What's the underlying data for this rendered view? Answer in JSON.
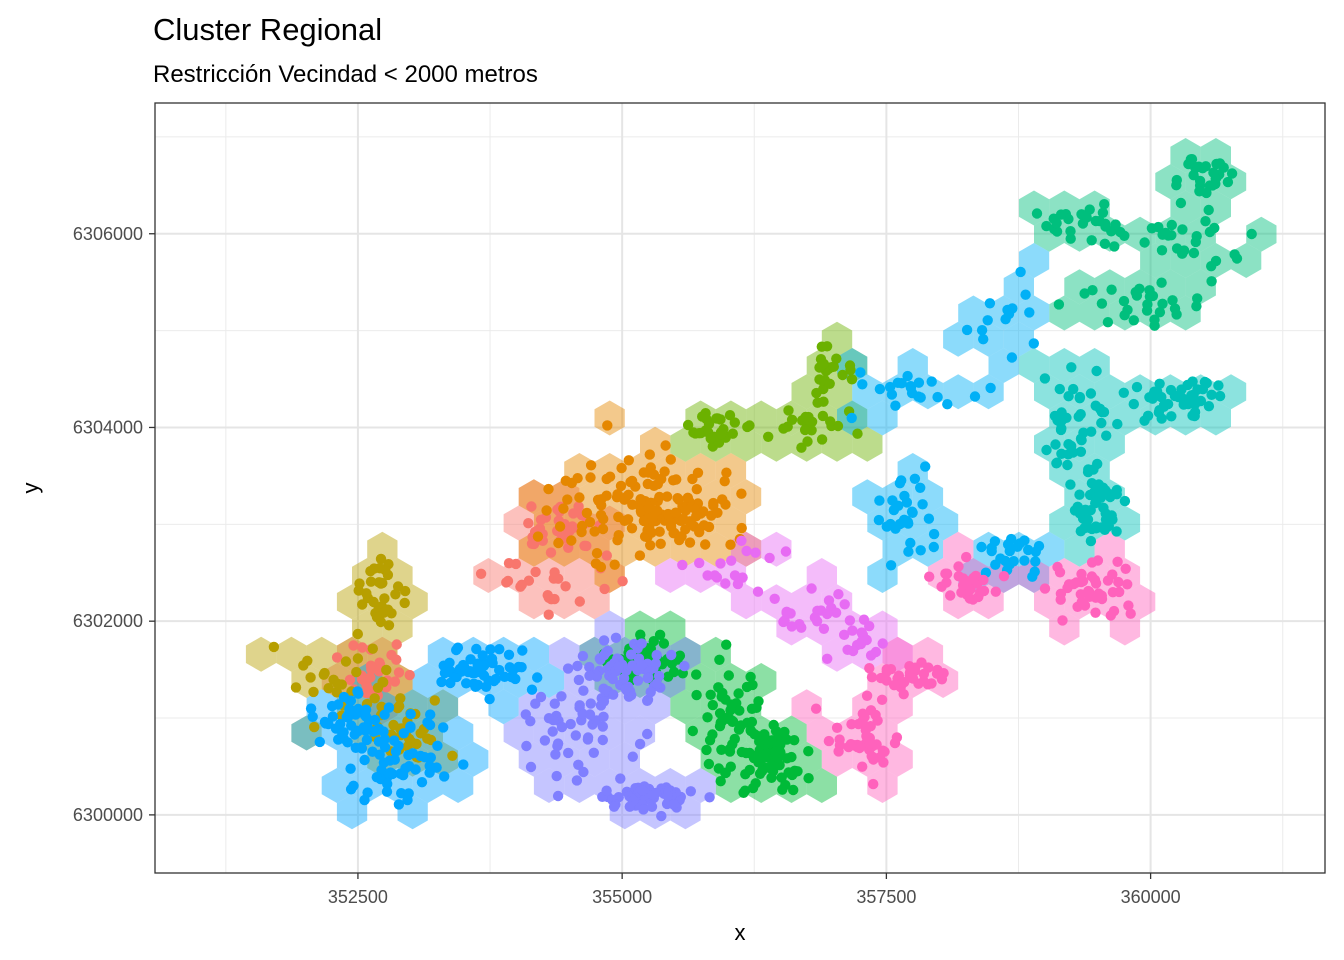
{
  "chart_data": {
    "type": "scatter",
    "title": "Cluster Regional",
    "subtitle": "Restricción Vecindad < 2000 metros",
    "xlabel": "x",
    "ylabel": "y",
    "xlim": [
      350580,
      361650
    ],
    "ylim": [
      6299400,
      6307350
    ],
    "xticks": [
      352500,
      355000,
      357500,
      360000
    ],
    "yticks": [
      6300000,
      6302000,
      6304000,
      6306000
    ],
    "xtick_labels": [
      "352500",
      "355000",
      "357500",
      "360000"
    ],
    "ytick_labels": [
      "6300000",
      "6302000",
      "6304000",
      "6306000"
    ],
    "grid": true,
    "legend": "none",
    "layers": [
      "hexbin (hexagon cells, semi-transparent)",
      "points"
    ],
    "series": [
      {
        "color": "#F8766D",
        "centers": [
          [
            354200,
            6302450
          ],
          [
            352700,
            6301500
          ],
          [
            354400,
            6303000
          ]
        ],
        "spreads": [
          [
            700,
            350
          ],
          [
            300,
            300
          ],
          [
            300,
            250
          ]
        ],
        "n": 90
      },
      {
        "color": "#E58700",
        "centers": [
          [
            355000,
            6303200
          ],
          [
            355600,
            6303100
          ]
        ],
        "spreads": [
          [
            550,
            500
          ],
          [
            450,
            400
          ]
        ],
        "n": 150
      },
      {
        "color": "#B79F00",
        "centers": [
          [
            352200,
            6301400
          ],
          [
            352700,
            6302300
          ],
          [
            353000,
            6300900
          ]
        ],
        "spreads": [
          [
            450,
            400
          ],
          [
            200,
            350
          ],
          [
            300,
            300
          ]
        ],
        "n": 90
      },
      {
        "color": "#6BB100",
        "centers": [
          [
            356800,
            6304000
          ],
          [
            357000,
            6304600
          ],
          [
            355900,
            6304000
          ]
        ],
        "spreads": [
          [
            350,
            250
          ],
          [
            200,
            250
          ],
          [
            250,
            200
          ]
        ],
        "n": 75
      },
      {
        "color": "#00BA38",
        "centers": [
          [
            356000,
            6301000
          ],
          [
            356400,
            6300600
          ],
          [
            355200,
            6301600
          ]
        ],
        "spreads": [
          [
            350,
            600
          ],
          [
            300,
            350
          ],
          [
            300,
            200
          ]
        ],
        "n": 190
      },
      {
        "color": "#00BF7D",
        "centers": [
          [
            360300,
            6306000
          ],
          [
            360500,
            6306600
          ],
          [
            359300,
            6306100
          ],
          [
            359900,
            6305300
          ]
        ],
        "spreads": [
          [
            500,
            350
          ],
          [
            300,
            150
          ],
          [
            400,
            200
          ],
          [
            500,
            200
          ]
        ],
        "n": 110
      },
      {
        "color": "#00C0B8",
        "centers": [
          [
            359300,
            6304000
          ],
          [
            359500,
            6303200
          ],
          [
            360300,
            6304300
          ]
        ],
        "spreads": [
          [
            300,
            500
          ],
          [
            200,
            400
          ],
          [
            400,
            200
          ]
        ],
        "n": 140
      },
      {
        "color": "#00B0F6",
        "centers": [
          [
            357700,
            6304400
          ],
          [
            358600,
            6305100
          ],
          [
            357700,
            6303100
          ],
          [
            358700,
            6302700
          ]
        ],
        "spreads": [
          [
            600,
            250
          ],
          [
            400,
            400
          ],
          [
            300,
            450
          ],
          [
            300,
            200
          ]
        ],
        "n": 90
      },
      {
        "color": "#00A5FF",
        "centers": [
          [
            352900,
            6300500
          ],
          [
            352500,
            6301000
          ],
          [
            353700,
            6301500
          ]
        ],
        "spreads": [
          [
            450,
            450
          ],
          [
            400,
            300
          ],
          [
            400,
            200
          ]
        ],
        "n": 160
      },
      {
        "color": "#7F7FFF",
        "centers": [
          [
            354600,
            6300900
          ],
          [
            355000,
            6301500
          ],
          [
            355200,
            6300200
          ]
        ],
        "spreads": [
          [
            500,
            500
          ],
          [
            400,
            300
          ],
          [
            400,
            150
          ]
        ],
        "n": 180
      },
      {
        "color": "#E76BF3",
        "centers": [
          [
            356800,
            6302000
          ],
          [
            356000,
            6302600
          ],
          [
            357300,
            6301800
          ]
        ],
        "spreads": [
          [
            400,
            250
          ],
          [
            350,
            250
          ],
          [
            300,
            200
          ]
        ],
        "n": 55
      },
      {
        "color": "#FF62BC",
        "centers": [
          [
            357300,
            6300800
          ],
          [
            359500,
            6302300
          ],
          [
            358300,
            6302400
          ],
          [
            357700,
            6301400
          ]
        ],
        "spreads": [
          [
            300,
            350
          ],
          [
            400,
            300
          ],
          [
            300,
            200
          ],
          [
            300,
            200
          ]
        ],
        "n": 150
      }
    ]
  }
}
